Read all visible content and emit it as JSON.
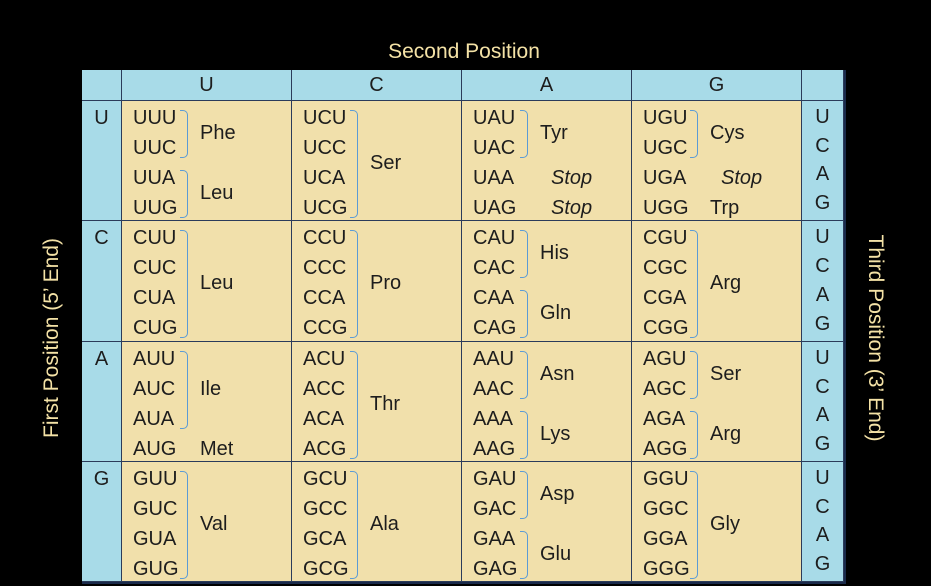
{
  "axis": {
    "top": "Second Position",
    "left": "First Position (5’  End)",
    "right": "Third Position (3’  End)"
  },
  "second_bases": [
    "U",
    "C",
    "A",
    "G"
  ],
  "third_bases": [
    "U",
    "C",
    "A",
    "G"
  ],
  "rows": [
    {
      "first": "U",
      "cells": [
        {
          "codons": [
            "UUU",
            "UUC",
            "UUA",
            "UUG"
          ],
          "groups": [
            {
              "aa": "Phe",
              "span": [
                0,
                1
              ],
              "bracket": true
            },
            {
              "aa": "Leu",
              "span": [
                2,
                3
              ],
              "bracket": true
            }
          ]
        },
        {
          "codons": [
            "UCU",
            "UCC",
            "UCA",
            "UCG"
          ],
          "groups": [
            {
              "aa": "Ser",
              "span": [
                0,
                3
              ],
              "bracket": true
            }
          ]
        },
        {
          "codons": [
            "UAU",
            "UAC",
            "UAA",
            "UAG"
          ],
          "groups": [
            {
              "aa": "Tyr",
              "span": [
                0,
                1
              ],
              "bracket": true
            },
            {
              "aa": "Stop",
              "span": [
                2,
                2
              ],
              "stop": true
            },
            {
              "aa": "Stop",
              "span": [
                3,
                3
              ],
              "stop": true
            }
          ]
        },
        {
          "codons": [
            "UGU",
            "UGC",
            "UGA",
            "UGG"
          ],
          "groups": [
            {
              "aa": "Cys",
              "span": [
                0,
                1
              ],
              "bracket": true
            },
            {
              "aa": "Stop",
              "span": [
                2,
                2
              ],
              "stop": true
            },
            {
              "aa": "Trp",
              "span": [
                3,
                3
              ]
            }
          ]
        }
      ]
    },
    {
      "first": "C",
      "cells": [
        {
          "codons": [
            "CUU",
            "CUC",
            "CUA",
            "CUG"
          ],
          "groups": [
            {
              "aa": "Leu",
              "span": [
                0,
                3
              ],
              "bracket": true
            }
          ]
        },
        {
          "codons": [
            "CCU",
            "CCC",
            "CCA",
            "CCG"
          ],
          "groups": [
            {
              "aa": "Pro",
              "span": [
                0,
                3
              ],
              "bracket": true
            }
          ]
        },
        {
          "codons": [
            "CAU",
            "CAC",
            "CAA",
            "CAG"
          ],
          "groups": [
            {
              "aa": "His",
              "span": [
                0,
                1
              ],
              "bracket": true
            },
            {
              "aa": "Gln",
              "span": [
                2,
                3
              ],
              "bracket": true
            }
          ]
        },
        {
          "codons": [
            "CGU",
            "CGC",
            "CGA",
            "CGG"
          ],
          "groups": [
            {
              "aa": "Arg",
              "span": [
                0,
                3
              ],
              "bracket": true
            }
          ]
        }
      ]
    },
    {
      "first": "A",
      "cells": [
        {
          "codons": [
            "AUU",
            "AUC",
            "AUA",
            "AUG"
          ],
          "groups": [
            {
              "aa": "Ile",
              "span": [
                0,
                2
              ],
              "bracket": true
            },
            {
              "aa": "Met",
              "span": [
                3,
                3
              ]
            }
          ]
        },
        {
          "codons": [
            "ACU",
            "ACC",
            "ACA",
            "ACG"
          ],
          "groups": [
            {
              "aa": "Thr",
              "span": [
                0,
                3
              ],
              "bracket": true
            }
          ]
        },
        {
          "codons": [
            "AAU",
            "AAC",
            "AAA",
            "AAG"
          ],
          "groups": [
            {
              "aa": "Asn",
              "span": [
                0,
                1
              ],
              "bracket": true
            },
            {
              "aa": "Lys",
              "span": [
                2,
                3
              ],
              "bracket": true
            }
          ]
        },
        {
          "codons": [
            "AGU",
            "AGC",
            "AGA",
            "AGG"
          ],
          "groups": [
            {
              "aa": "Ser",
              "span": [
                0,
                1
              ],
              "bracket": true
            },
            {
              "aa": "Arg",
              "span": [
                2,
                3
              ],
              "bracket": true
            }
          ]
        }
      ]
    },
    {
      "first": "G",
      "cells": [
        {
          "codons": [
            "GUU",
            "GUC",
            "GUA",
            "GUG"
          ],
          "groups": [
            {
              "aa": "Val",
              "span": [
                0,
                3
              ],
              "bracket": true
            }
          ]
        },
        {
          "codons": [
            "GCU",
            "GCC",
            "GCA",
            "GCG"
          ],
          "groups": [
            {
              "aa": "Ala",
              "span": [
                0,
                3
              ],
              "bracket": true
            }
          ]
        },
        {
          "codons": [
            "GAU",
            "GAC",
            "GAA",
            "GAG"
          ],
          "groups": [
            {
              "aa": "Asp",
              "span": [
                0,
                1
              ],
              "bracket": true
            },
            {
              "aa": "Glu",
              "span": [
                2,
                3
              ],
              "bracket": true
            }
          ]
        },
        {
          "codons": [
            "GGU",
            "GGC",
            "GGA",
            "GGG"
          ],
          "groups": [
            {
              "aa": "Gly",
              "span": [
                0,
                3
              ],
              "bracket": true
            }
          ]
        }
      ]
    }
  ],
  "colors": {
    "header_fill": "#a8dbe8",
    "cell_fill": "#f1e0ab",
    "bracket": "#5b9bd5",
    "axis_text": "#f4e2a6",
    "background": "#000000"
  }
}
